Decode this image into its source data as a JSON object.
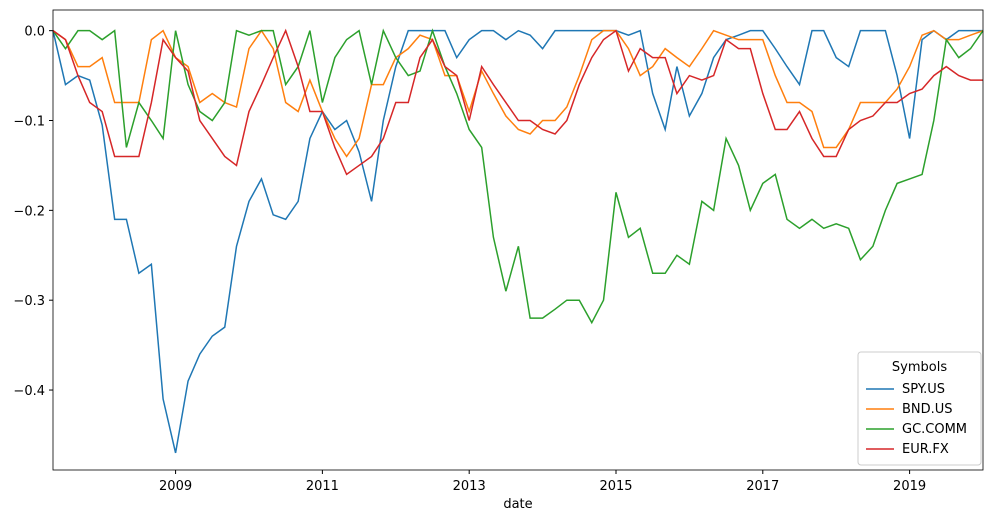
{
  "chart_data": {
    "type": "line",
    "x_label": "date",
    "legend_title": "Symbols",
    "legend_loc": "lower right",
    "x": [
      2007.33,
      2007.5,
      2007.67,
      2007.83,
      2008,
      2008.17,
      2008.33,
      2008.5,
      2008.67,
      2008.83,
      2009,
      2009.17,
      2009.33,
      2009.5,
      2009.67,
      2009.83,
      2010,
      2010.17,
      2010.33,
      2010.5,
      2010.67,
      2010.83,
      2011,
      2011.17,
      2011.33,
      2011.5,
      2011.67,
      2011.83,
      2012,
      2012.17,
      2012.33,
      2012.5,
      2012.67,
      2012.83,
      2013,
      2013.17,
      2013.33,
      2013.5,
      2013.67,
      2013.83,
      2014,
      2014.17,
      2014.33,
      2014.5,
      2014.67,
      2014.83,
      2015,
      2015.17,
      2015.33,
      2015.5,
      2015.67,
      2015.83,
      2016,
      2016.17,
      2016.33,
      2016.5,
      2016.67,
      2016.83,
      2017,
      2017.17,
      2017.33,
      2017.5,
      2017.67,
      2017.83,
      2018,
      2018.17,
      2018.33,
      2018.5,
      2018.67,
      2018.83,
      2019,
      2019.17,
      2019.33,
      2019.5,
      2019.67,
      2019.83,
      2020
    ],
    "xlim": [
      2007.33,
      2020.0
    ],
    "xticks": [
      2009,
      2011,
      2013,
      2015,
      2017,
      2019
    ],
    "ylim": [
      -0.489,
      0.023
    ],
    "yticks": [
      {
        "value": -0.4,
        "label": "−0.4"
      },
      {
        "value": -0.3,
        "label": "−0.3"
      },
      {
        "value": -0.2,
        "label": "−0.2"
      },
      {
        "value": -0.1,
        "label": "−0.1"
      },
      {
        "value": 0,
        "label": "0.0"
      }
    ],
    "series": [
      {
        "name": "SPY.US",
        "color": "#1f77b4",
        "values": [
          0,
          -0.06,
          -0.05,
          -0.055,
          -0.105,
          -0.21,
          -0.21,
          -0.27,
          -0.26,
          -0.41,
          -0.47,
          -0.39,
          -0.36,
          -0.34,
          -0.33,
          -0.24,
          -0.19,
          -0.165,
          -0.205,
          -0.21,
          -0.19,
          -0.12,
          -0.09,
          -0.11,
          -0.1,
          -0.135,
          -0.19,
          -0.1,
          -0.04,
          0,
          0,
          0,
          0,
          -0.03,
          -0.01,
          0,
          0,
          -0.01,
          0,
          -0.005,
          -0.02,
          0,
          0,
          0,
          0,
          0,
          0,
          -0.005,
          0,
          -0.07,
          -0.11,
          -0.04,
          -0.095,
          -0.07,
          -0.03,
          -0.01,
          -0.005,
          0,
          0,
          -0.02,
          -0.04,
          -0.06,
          0,
          0,
          -0.03,
          -0.04,
          0,
          0,
          0,
          -0.05,
          -0.12,
          -0.01,
          0,
          -0.01,
          0,
          0,
          0
        ]
      },
      {
        "name": "BND.US",
        "color": "#ff7f0e",
        "values": [
          0,
          -0.01,
          -0.04,
          -0.04,
          -0.03,
          -0.08,
          -0.08,
          -0.08,
          -0.01,
          0,
          -0.03,
          -0.04,
          -0.08,
          -0.07,
          -0.08,
          -0.085,
          -0.02,
          0,
          -0.02,
          -0.08,
          -0.09,
          -0.055,
          -0.09,
          -0.12,
          -0.14,
          -0.12,
          -0.06,
          -0.06,
          -0.03,
          -0.02,
          -0.005,
          -0.01,
          -0.05,
          -0.05,
          -0.09,
          -0.045,
          -0.07,
          -0.095,
          -0.11,
          -0.115,
          -0.1,
          -0.1,
          -0.085,
          -0.05,
          -0.01,
          0,
          0,
          -0.02,
          -0.05,
          -0.04,
          -0.02,
          -0.03,
          -0.04,
          -0.02,
          0,
          -0.005,
          -0.01,
          -0.01,
          -0.01,
          -0.05,
          -0.08,
          -0.08,
          -0.09,
          -0.13,
          -0.13,
          -0.11,
          -0.08,
          -0.08,
          -0.08,
          -0.065,
          -0.04,
          -0.005,
          0,
          -0.01,
          -0.01,
          -0.005,
          0
        ]
      },
      {
        "name": "GC.COMM",
        "color": "#2ca02c",
        "values": [
          0,
          -0.02,
          0,
          0,
          -0.01,
          0,
          -0.13,
          -0.08,
          -0.1,
          -0.12,
          0,
          -0.06,
          -0.09,
          -0.1,
          -0.08,
          0,
          -0.005,
          0,
          0,
          -0.06,
          -0.04,
          0,
          -0.08,
          -0.03,
          -0.01,
          0,
          -0.06,
          0,
          -0.03,
          -0.05,
          -0.045,
          0,
          -0.04,
          -0.07,
          -0.11,
          -0.13,
          -0.23,
          -0.29,
          -0.24,
          -0.32,
          -0.32,
          -0.31,
          -0.3,
          -0.3,
          -0.325,
          -0.3,
          -0.18,
          -0.23,
          -0.22,
          -0.27,
          -0.27,
          -0.25,
          -0.26,
          -0.19,
          -0.2,
          -0.12,
          -0.15,
          -0.2,
          -0.17,
          -0.16,
          -0.21,
          -0.22,
          -0.21,
          -0.22,
          -0.215,
          -0.22,
          -0.255,
          -0.24,
          -0.2,
          -0.17,
          -0.165,
          -0.16,
          -0.1,
          -0.01,
          -0.03,
          -0.02,
          0
        ]
      },
      {
        "name": "EUR.FX",
        "color": "#d62728",
        "values": [
          0,
          -0.01,
          -0.05,
          -0.08,
          -0.09,
          -0.14,
          -0.14,
          -0.14,
          -0.08,
          -0.01,
          -0.03,
          -0.045,
          -0.1,
          -0.12,
          -0.14,
          -0.15,
          -0.09,
          -0.06,
          -0.03,
          0,
          -0.04,
          -0.09,
          -0.09,
          -0.13,
          -0.16,
          -0.15,
          -0.14,
          -0.12,
          -0.08,
          -0.08,
          -0.03,
          -0.01,
          -0.04,
          -0.05,
          -0.1,
          -0.04,
          -0.06,
          -0.08,
          -0.1,
          -0.1,
          -0.11,
          -0.115,
          -0.1,
          -0.06,
          -0.03,
          -0.01,
          0,
          -0.045,
          -0.02,
          -0.03,
          -0.03,
          -0.07,
          -0.05,
          -0.055,
          -0.05,
          -0.01,
          -0.02,
          -0.02,
          -0.07,
          -0.11,
          -0.11,
          -0.09,
          -0.12,
          -0.14,
          -0.14,
          -0.11,
          -0.1,
          -0.095,
          -0.08,
          -0.08,
          -0.07,
          -0.065,
          -0.05,
          -0.04,
          -0.05,
          -0.055,
          -0.055
        ]
      }
    ]
  }
}
